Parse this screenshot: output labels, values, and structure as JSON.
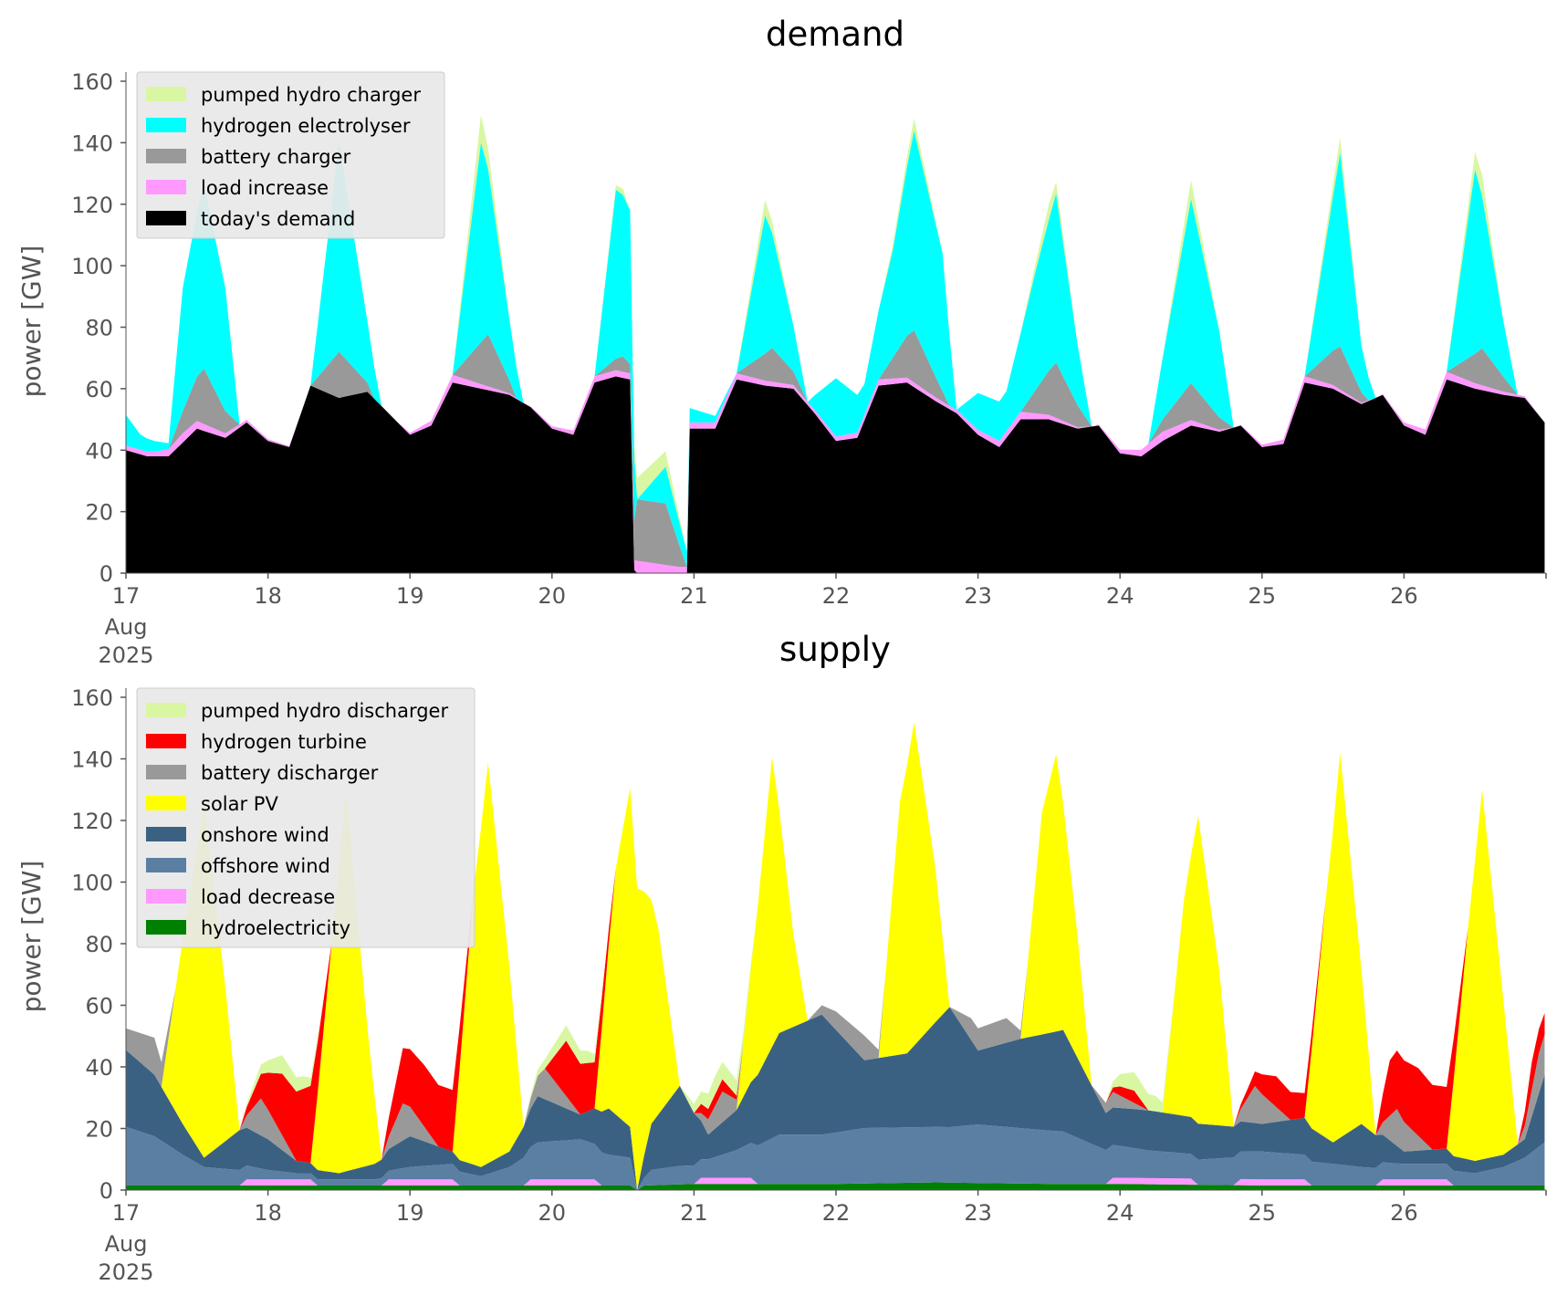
{
  "chart_data": [
    {
      "type": "area",
      "stacked": true,
      "title": "demand",
      "xlabel": "",
      "ylabel": "power [GW]",
      "ylim": [
        0,
        160
      ],
      "yticks": [
        0,
        20,
        40,
        60,
        80,
        100,
        120,
        140,
        160
      ],
      "xlim": [
        17,
        27
      ],
      "xtick_labels": [
        "17",
        "18",
        "19",
        "20",
        "21",
        "22",
        "23",
        "24",
        "25",
        "26"
      ],
      "xtick_sublabel": [
        "Aug",
        "2025"
      ],
      "legend_position": "upper-left",
      "series": [
        {
          "name": "today's demand",
          "color": "#000000",
          "x": [
            17.0,
            17.15,
            17.3,
            17.5,
            17.7,
            17.85,
            18.0,
            18.15,
            18.3,
            18.5,
            18.7,
            18.85,
            19.0,
            19.15,
            19.3,
            19.5,
            19.7,
            19.85,
            20.0,
            20.15,
            20.3,
            20.45,
            20.55,
            20.58,
            20.6,
            20.85,
            20.95,
            20.97,
            21.0,
            21.15,
            21.3,
            21.5,
            21.7,
            21.85,
            22.0,
            22.15,
            22.3,
            22.5,
            22.7,
            22.85,
            23.0,
            23.15,
            23.3,
            23.5,
            23.7,
            23.85,
            24.0,
            24.15,
            24.3,
            24.5,
            24.7,
            24.85,
            25.0,
            25.15,
            25.3,
            25.5,
            25.7,
            25.85,
            26.0,
            26.15,
            26.3,
            26.5,
            26.7,
            26.85,
            26.99
          ],
          "y": [
            40,
            38,
            38,
            47,
            44,
            49,
            43,
            41,
            61,
            57,
            59,
            52,
            45,
            48,
            62,
            60,
            58,
            54,
            47,
            45,
            62,
            64,
            63,
            1,
            0,
            0,
            0,
            47,
            47,
            47,
            63,
            61,
            60,
            52,
            43,
            44,
            61,
            62,
            56,
            52,
            45,
            41,
            50,
            50,
            47,
            48,
            39,
            38,
            43,
            48,
            46,
            48,
            41,
            42,
            62,
            60,
            55,
            58,
            48,
            45,
            63,
            60,
            58,
            57,
            49
          ]
        },
        {
          "name": "load increase",
          "color": "#ff99ff",
          "x": [
            17.0,
            17.2,
            17.4,
            17.8,
            18.3,
            18.9,
            19.3,
            19.8,
            20.3,
            20.55,
            20.6,
            20.9,
            21.3,
            21.8,
            22.3,
            22.8,
            23.3,
            23.8,
            24.3,
            24.8,
            25.3,
            25.8,
            26.3,
            26.99
          ],
          "y": [
            1.5,
            1.5,
            3,
            1,
            0,
            0,
            2.5,
            0,
            2,
            2,
            4,
            2,
            2,
            1,
            2,
            1,
            2.5,
            0,
            3,
            0,
            2,
            0,
            2.5,
            0
          ]
        },
        {
          "name": "battery charger",
          "color": "#999999",
          "x": [
            17.0,
            17.3,
            17.55,
            17.8,
            18.3,
            18.5,
            18.75,
            19.3,
            19.55,
            19.75,
            20.3,
            20.5,
            20.55,
            20.6,
            20.8,
            20.95,
            21.3,
            21.55,
            21.8,
            22.3,
            22.55,
            22.8,
            23.3,
            23.55,
            23.8,
            24.2,
            24.5,
            24.8,
            25.3,
            25.55,
            25.75,
            26.3,
            26.55,
            26.8,
            26.99
          ],
          "y": [
            0,
            0,
            18,
            0,
            0,
            15,
            0,
            0,
            17,
            0,
            0,
            5,
            3,
            20,
            20,
            0,
            0,
            11,
            0,
            0,
            17,
            0,
            0,
            18,
            0,
            0,
            12,
            0,
            0,
            14,
            0,
            0,
            12,
            0,
            0
          ]
        },
        {
          "name": "hydrogen electrolyser",
          "color": "#00ffff",
          "x": [
            17.0,
            17.1,
            17.3,
            17.4,
            17.55,
            17.7,
            17.8,
            18.3,
            18.5,
            18.7,
            18.8,
            19.3,
            19.5,
            19.7,
            19.8,
            20.3,
            20.45,
            20.55,
            20.6,
            20.8,
            20.95,
            21.3,
            21.5,
            21.7,
            21.8,
            22.0,
            22.2,
            22.4,
            22.55,
            22.75,
            22.85,
            23.0,
            23.2,
            23.4,
            23.55,
            23.7,
            23.8,
            24.2,
            24.5,
            24.7,
            24.8,
            25.3,
            25.55,
            25.7,
            25.8,
            26.3,
            26.5,
            26.7,
            26.8,
            26.99
          ],
          "y": [
            10,
            5,
            2,
            40,
            60,
            40,
            0,
            0,
            68,
            20,
            0,
            0,
            65,
            20,
            0,
            0,
            55,
            50,
            0,
            12,
            5,
            0,
            45,
            15,
            0,
            19,
            10,
            35,
            65,
            45,
            0,
            12,
            13,
            38,
            55,
            20,
            0,
            0,
            60,
            28,
            0,
            0,
            63,
            15,
            0,
            0,
            60,
            18,
            0,
            0
          ]
        },
        {
          "name": "pumped hydro charger",
          "color": "#d9f7a3",
          "x": [
            17.0,
            19.3,
            19.5,
            19.7,
            20.3,
            20.5,
            20.55,
            20.6,
            20.8,
            20.95,
            21.3,
            21.5,
            21.7,
            22.3,
            22.55,
            22.75,
            23.3,
            23.5,
            23.7,
            24.3,
            24.5,
            24.7,
            25.3,
            25.55,
            25.7,
            26.3,
            26.55,
            26.7,
            26.99
          ],
          "y": [
            0,
            0,
            9,
            0,
            0,
            2,
            0,
            7,
            5,
            0,
            0,
            5,
            0,
            0,
            4,
            0,
            0,
            5,
            0,
            0,
            6,
            0,
            0,
            5,
            0,
            0,
            7,
            0,
            0
          ]
        }
      ]
    },
    {
      "type": "area",
      "stacked": true,
      "title": "supply",
      "xlabel": "",
      "ylabel": "power [GW]",
      "ylim": [
        0,
        160
      ],
      "yticks": [
        0,
        20,
        40,
        60,
        80,
        100,
        120,
        140,
        160
      ],
      "xlim": [
        17,
        27
      ],
      "xtick_labels": [
        "17",
        "18",
        "19",
        "20",
        "21",
        "22",
        "23",
        "24",
        "25",
        "26"
      ],
      "xtick_sublabel": [
        "Aug",
        "2025"
      ],
      "legend_position": "upper-left",
      "series": [
        {
          "name": "hydroelectricity",
          "color": "#008000",
          "x": [
            17.0,
            18.0,
            19.0,
            20.0,
            20.55,
            20.6,
            20.65,
            21.0,
            22.0,
            22.7,
            23.5,
            24.0,
            25.0,
            26.0,
            26.99
          ],
          "y": [
            1.5,
            1.5,
            1.5,
            1.5,
            1.5,
            0,
            1.5,
            2,
            2,
            2.5,
            2,
            2,
            1.5,
            1.5,
            1.5
          ]
        },
        {
          "name": "load decrease",
          "color": "#ff99ff",
          "x": [
            17.0,
            17.8,
            17.85,
            18.3,
            18.35,
            18.8,
            18.85,
            19.3,
            19.35,
            19.8,
            19.85,
            20.3,
            20.35,
            20.55,
            20.6,
            21.0,
            21.05,
            21.4,
            21.45,
            23.9,
            23.95,
            24.5,
            24.55,
            24.8,
            24.85,
            25.3,
            25.35,
            25.8,
            25.85,
            26.3,
            26.35,
            26.99
          ],
          "y": [
            0,
            0,
            2,
            2,
            0,
            0,
            2,
            2,
            0,
            0,
            2,
            2,
            0,
            0,
            0,
            0,
            2,
            2,
            0,
            0,
            2,
            2,
            0,
            0,
            2,
            2,
            0,
            0,
            2,
            2,
            0,
            0
          ]
        },
        {
          "name": "offshore wind",
          "color": "#5b7fa3",
          "x": [
            17.0,
            17.2,
            17.4,
            17.55,
            17.8,
            18.0,
            18.2,
            18.5,
            18.75,
            19.0,
            19.3,
            19.5,
            19.7,
            19.9,
            20.2,
            20.4,
            20.55,
            20.6,
            20.7,
            20.9,
            21.1,
            21.3,
            21.6,
            21.9,
            22.2,
            22.5,
            22.8,
            23.0,
            23.3,
            23.6,
            23.9,
            24.2,
            24.5,
            24.8,
            25.0,
            25.3,
            25.5,
            25.7,
            26.0,
            26.3,
            26.5,
            26.7,
            26.85,
            26.99
          ],
          "y": [
            19,
            16,
            10,
            6,
            5,
            3,
            2,
            2,
            2,
            4,
            5,
            3,
            6,
            12,
            13,
            10,
            9,
            0,
            5,
            6,
            6,
            9,
            16,
            16,
            18,
            18,
            18,
            19,
            18,
            17,
            11,
            9,
            8,
            9,
            9,
            8,
            7,
            6,
            5,
            5,
            4,
            6,
            9,
            14
          ]
        },
        {
          "name": "onshore wind",
          "color": "#3b6182",
          "x": [
            17.0,
            17.2,
            17.4,
            17.55,
            17.8,
            18.0,
            18.2,
            18.5,
            18.75,
            19.0,
            19.3,
            19.5,
            19.7,
            19.9,
            20.2,
            20.4,
            20.55,
            20.6,
            20.7,
            20.9,
            21.1,
            21.3,
            21.6,
            21.9,
            22.2,
            22.5,
            22.8,
            23.0,
            23.3,
            23.6,
            23.9,
            24.2,
            24.5,
            24.8,
            25.0,
            25.3,
            25.5,
            25.7,
            26.0,
            26.3,
            26.5,
            26.7,
            26.85,
            26.99
          ],
          "y": [
            25,
            20,
            10,
            3,
            13,
            10,
            4,
            2,
            5,
            10,
            4,
            3,
            5,
            15,
            8,
            15,
            10,
            0,
            15,
            26,
            8,
            13,
            33,
            39,
            22,
            24,
            39,
            24,
            29,
            33,
            12,
            13,
            12,
            10,
            9,
            12,
            7,
            14,
            4,
            5,
            4,
            4,
            6,
            22
          ]
        },
        {
          "name": "solar PV",
          "color": "#ffff00",
          "x": [
            17.0,
            17.25,
            17.4,
            17.55,
            17.7,
            17.8,
            18.0,
            18.3,
            18.45,
            18.55,
            18.7,
            18.8,
            19.0,
            19.3,
            19.45,
            19.55,
            19.7,
            19.8,
            20.0,
            20.3,
            20.45,
            20.55,
            20.6,
            20.75,
            20.9,
            21.0,
            21.3,
            21.45,
            21.55,
            21.7,
            21.8,
            22.0,
            22.3,
            22.45,
            22.55,
            22.7,
            22.8,
            23.0,
            23.3,
            23.45,
            23.55,
            23.7,
            23.8,
            24.0,
            24.3,
            24.45,
            24.55,
            24.7,
            24.8,
            25.0,
            25.3,
            25.45,
            25.55,
            25.7,
            25.8,
            26.0,
            26.3,
            26.45,
            26.55,
            26.7,
            26.8,
            26.99
          ],
          "y": [
            0,
            0,
            60,
            115,
            50,
            0,
            0,
            0,
            75,
            124,
            45,
            0,
            0,
            0,
            90,
            130,
            60,
            0,
            0,
            0,
            80,
            110,
            98,
            60,
            0,
            0,
            0,
            55,
            94,
            30,
            0,
            0,
            0,
            82,
            105,
            50,
            0,
            0,
            0,
            72,
            90,
            40,
            0,
            0,
            0,
            70,
            100,
            50,
            0,
            0,
            0,
            78,
            125,
            50,
            0,
            0,
            0,
            75,
            120,
            50,
            0,
            0
          ]
        },
        {
          "name": "battery discharger",
          "color": "#999999",
          "x": [
            17.0,
            17.2,
            17.35,
            17.8,
            17.95,
            18.2,
            18.8,
            18.95,
            19.2,
            19.8,
            19.95,
            20.2,
            20.9,
            21.0,
            21.2,
            21.35,
            21.8,
            22.0,
            22.2,
            22.35,
            22.8,
            22.95,
            23.2,
            23.35,
            23.8,
            23.95,
            24.2,
            24.8,
            24.95,
            25.2,
            25.8,
            25.95,
            26.2,
            26.8,
            26.95,
            26.99
          ],
          "y": [
            7,
            12,
            0,
            0,
            12,
            0,
            0,
            12,
            0,
            0,
            10,
            0,
            0,
            0,
            10,
            0,
            0,
            6,
            8,
            0,
            0,
            7,
            8,
            0,
            0,
            5,
            0,
            0,
            12,
            0,
            0,
            12,
            0,
            0,
            13,
            13
          ]
        },
        {
          "name": "hydrogen turbine",
          "color": "#ff0000",
          "x": [
            17.0,
            17.8,
            17.95,
            18.1,
            18.3,
            18.45,
            18.8,
            18.95,
            19.1,
            19.3,
            19.45,
            19.8,
            19.95,
            20.1,
            20.3,
            20.45,
            21.0,
            21.05,
            21.2,
            21.35,
            23.9,
            24.0,
            24.1,
            24.2,
            24.8,
            24.9,
            25.1,
            25.3,
            25.45,
            25.8,
            25.9,
            26.1,
            26.3,
            26.45,
            26.8,
            26.9,
            26.99
          ],
          "y": [
            0,
            0,
            8,
            20,
            25,
            0,
            0,
            18,
            20,
            20,
            0,
            0,
            0,
            18,
            15,
            0,
            0,
            3,
            4,
            0,
            0,
            3,
            4,
            0,
            0,
            3,
            10,
            8,
            0,
            0,
            18,
            22,
            20,
            0,
            0,
            9,
            7
          ]
        },
        {
          "name": "pumped hydro discharger",
          "color": "#d9f7a3",
          "x": [
            17.0,
            17.8,
            17.95,
            18.1,
            18.25,
            18.4,
            19.8,
            19.95,
            20.1,
            20.25,
            20.4,
            20.9,
            21.0,
            21.15,
            21.3,
            21.45,
            23.9,
            24.0,
            24.1,
            24.25,
            24.4,
            26.99
          ],
          "y": [
            0,
            0,
            3,
            6,
            4,
            0,
            0,
            3,
            5,
            4,
            0,
            0,
            3,
            6,
            5,
            0,
            0,
            4,
            6,
            5,
            0,
            0
          ]
        }
      ]
    }
  ]
}
